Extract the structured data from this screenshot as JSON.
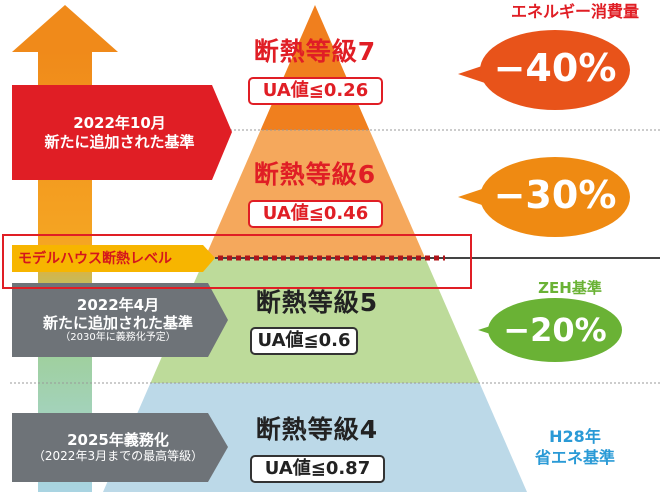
{
  "header": {
    "energy_label": "エネルギー消費量"
  },
  "levels": [
    {
      "grade": "断熱等級7",
      "ua": "UA値≦0.26",
      "reduction": "−40%",
      "color": "#e8531a"
    },
    {
      "grade": "断熱等級6",
      "ua": "UA値≦0.46",
      "reduction": "−30%",
      "color": "#ef8a12"
    },
    {
      "grade": "断熱等級5",
      "ua": "UA値≦0.6",
      "reduction": "−20%",
      "color": "#6ab235",
      "standard": "ZEH基準"
    },
    {
      "grade": "断熱等級4",
      "ua": "UA値≦0.87",
      "standard_line1": "H28年",
      "standard_line2": "省エネ基準"
    }
  ],
  "tags": {
    "oct2022": {
      "line1": "2022年10月",
      "line2": "新たに追加された基準"
    },
    "model_house": "モデルハウス断熱レベル",
    "apr2022": {
      "line1": "2022年4月",
      "line2": "新たに追加された基準",
      "line3": "（2030年に義務化予定）"
    },
    "mandatory2025": {
      "line1": "2025年義務化",
      "line2": "（2022年3月までの最高等級）"
    }
  },
  "colors": {
    "red": "#e01e25",
    "gray": "#6e7378",
    "yellow": "#f7b500",
    "blue_text": "#2a9ad6",
    "green_text": "#6ab235"
  }
}
